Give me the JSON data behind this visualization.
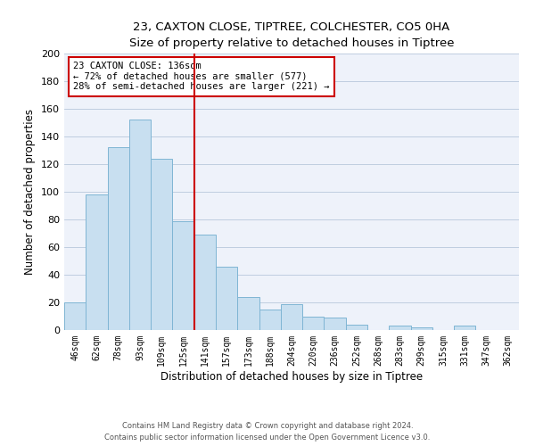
{
  "title": "23, CAXTON CLOSE, TIPTREE, COLCHESTER, CO5 0HA",
  "subtitle": "Size of property relative to detached houses in Tiptree",
  "xlabel": "Distribution of detached houses by size in Tiptree",
  "ylabel": "Number of detached properties",
  "bar_labels": [
    "46sqm",
    "62sqm",
    "78sqm",
    "93sqm",
    "109sqm",
    "125sqm",
    "141sqm",
    "157sqm",
    "173sqm",
    "188sqm",
    "204sqm",
    "220sqm",
    "236sqm",
    "252sqm",
    "268sqm",
    "283sqm",
    "299sqm",
    "315sqm",
    "331sqm",
    "347sqm",
    "362sqm"
  ],
  "bar_values": [
    20,
    98,
    132,
    152,
    124,
    79,
    69,
    46,
    24,
    15,
    19,
    10,
    9,
    4,
    0,
    3,
    2,
    0,
    3,
    0,
    0
  ],
  "bar_color": "#c8dff0",
  "bar_edge_color": "#7fb5d4",
  "reference_line_color": "#cc0000",
  "annotation_line1": "23 CAXTON CLOSE: 136sqm",
  "annotation_line2": "← 72% of detached houses are smaller (577)",
  "annotation_line3": "28% of semi-detached houses are larger (221) →",
  "annotation_box_color": "#ffffff",
  "annotation_box_edge": "#cc0000",
  "ylim": [
    0,
    200
  ],
  "yticks": [
    0,
    20,
    40,
    60,
    80,
    100,
    120,
    140,
    160,
    180,
    200
  ],
  "footer_line1": "Contains HM Land Registry data © Crown copyright and database right 2024.",
  "footer_line2": "Contains public sector information licensed under the Open Government Licence v3.0.",
  "bg_color": "#ffffff",
  "plot_bg_color": "#eef2fa"
}
